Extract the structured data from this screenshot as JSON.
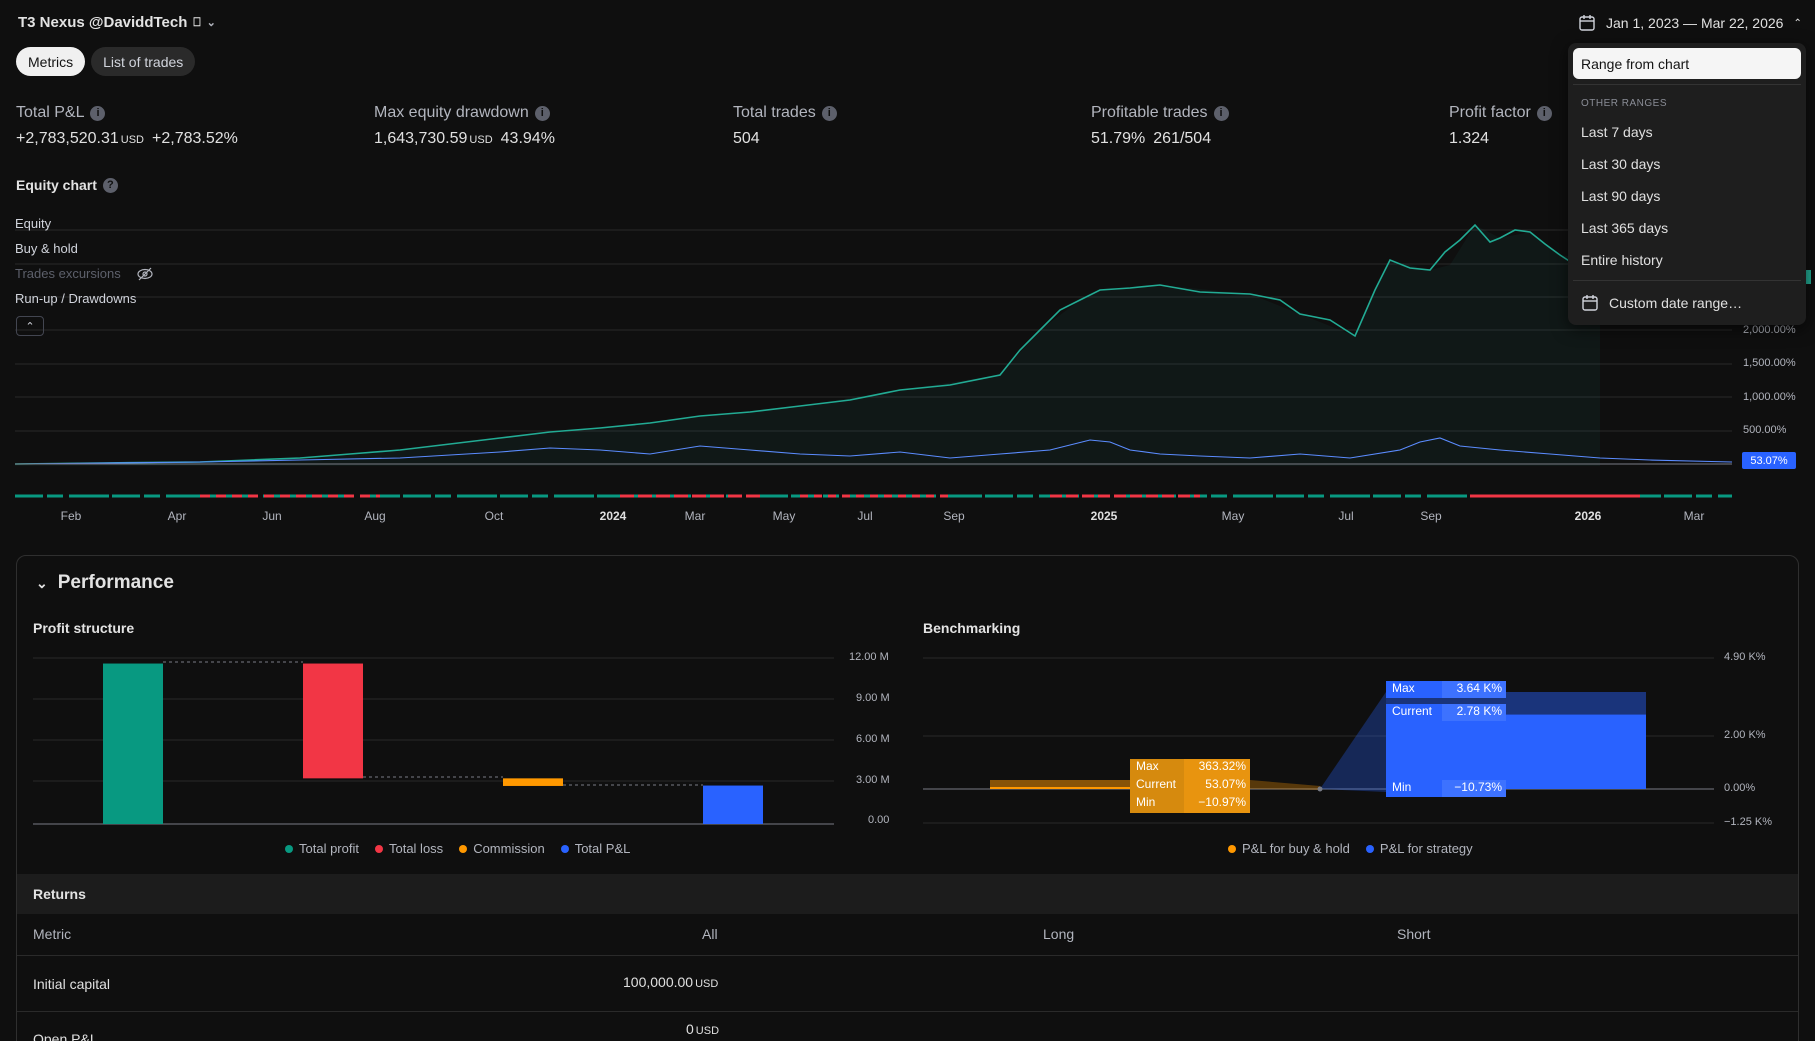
{
  "header": {
    "title": "T3 Nexus @DaviddTech",
    "title_glyph": "⎕",
    "date_range": "Jan 1, 2023 — Mar 22, 2026"
  },
  "tabs": [
    {
      "label": "Metrics",
      "active": true
    },
    {
      "label": "List of trades",
      "active": false
    }
  ],
  "stats": {
    "total_pnl": {
      "label": "Total P&L",
      "value": "+2,783,520.31",
      "unit": "USD",
      "pct": "+2,783.52%"
    },
    "max_dd": {
      "label": "Max equity drawdown",
      "value": "1,643,730.59",
      "unit": "USD",
      "pct": "43.94%"
    },
    "total_trades": {
      "label": "Total trades",
      "value": "504"
    },
    "profitable": {
      "label": "Profitable trades",
      "pct": "51.79%",
      "ratio": "261/504"
    },
    "profit_factor": {
      "label": "Profit factor",
      "value": "1.324"
    }
  },
  "equity_chart": {
    "title": "Equity chart",
    "legend": [
      "Equity",
      "Buy & hold",
      "Trades excursions",
      "Run-up / Drawdowns"
    ],
    "y_labels": [
      "2,000.00%",
      "1,500.00%",
      "1,000.00%",
      "500.00%"
    ],
    "current_tag": "53.07%",
    "x_labels": [
      "Feb",
      "Apr",
      "Jun",
      "Aug",
      "Oct",
      "2024",
      "Mar",
      "May",
      "Jul",
      "Sep",
      "2025",
      "May",
      "Jul",
      "Sep",
      "2026",
      "Mar"
    ]
  },
  "performance": {
    "title": "Performance",
    "profit_structure": {
      "title": "Profit structure",
      "y_labels": [
        "12.00 M",
        "9.00 M",
        "6.00 M",
        "3.00 M",
        "0.00"
      ],
      "legend": [
        {
          "label": "Total profit",
          "color": "#089981"
        },
        {
          "label": "Total loss",
          "color": "#f23645"
        },
        {
          "label": "Commission",
          "color": "#ff9800"
        },
        {
          "label": "Total P&L",
          "color": "#2962ff"
        }
      ]
    },
    "benchmarking": {
      "title": "Benchmarking",
      "y_labels": [
        "4.90 K%",
        "2.00 K%",
        "0.00%",
        "−1.25 K%"
      ],
      "bh": {
        "max_label": "Max",
        "max": "363.32%",
        "cur_label": "Current",
        "cur": "53.07%",
        "min_label": "Min",
        "min": "−10.97%"
      },
      "strat": {
        "max_label": "Max",
        "max": "3.64 K%",
        "cur_label": "Current",
        "cur": "2.78 K%",
        "min_label": "Min",
        "min": "−10.73%"
      },
      "legend": [
        {
          "label": "P&L for buy & hold",
          "color": "#ff9800"
        },
        {
          "label": "P&L for strategy",
          "color": "#2962ff"
        }
      ]
    }
  },
  "returns": {
    "title": "Returns",
    "columns": [
      "Metric",
      "All",
      "Long",
      "Short"
    ],
    "rows": [
      {
        "metric": "Initial capital",
        "all": "100,000.00",
        "unit": "USD"
      },
      {
        "metric": "Open P&L",
        "all": "0",
        "unit": "USD"
      }
    ]
  },
  "dropdown": {
    "selected": "Range from chart",
    "heading": "OTHER RANGES",
    "items": [
      "Last 7 days",
      "Last 30 days",
      "Last 90 days",
      "Last 365 days",
      "Entire history"
    ],
    "custom": "Custom date range…"
  },
  "chart_data": [
    {
      "type": "bar",
      "title": "Profit structure",
      "categories": [
        "Total profit",
        "Total loss",
        "Commission",
        "Total P&L"
      ],
      "values": [
        11.6,
        8.3,
        0.55,
        2.78
      ],
      "ylim": [
        0,
        12
      ]
    },
    {
      "type": "bar",
      "title": "Benchmarking",
      "categories": [
        "P&L for buy & hold",
        "P&L for strategy"
      ],
      "values": [
        53.07,
        2783.52
      ],
      "ylim": [
        -1250,
        4900
      ]
    }
  ]
}
